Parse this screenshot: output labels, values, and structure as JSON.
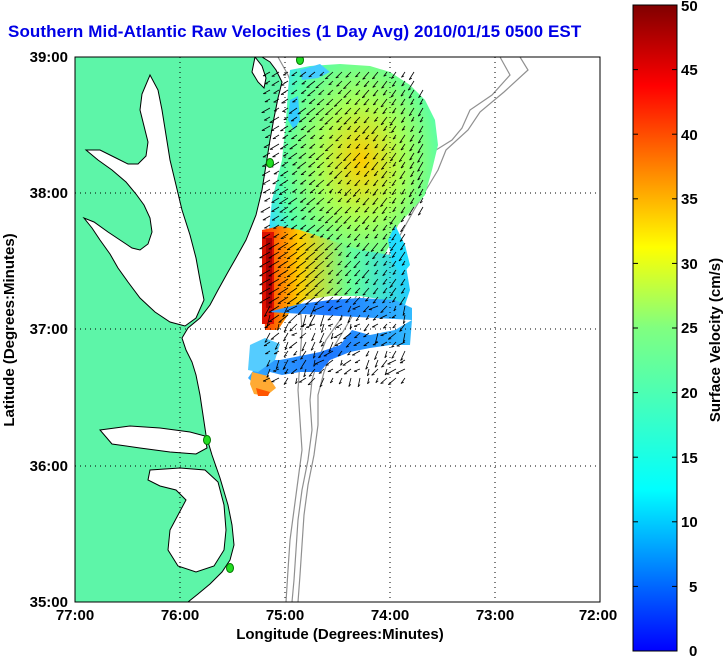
{
  "title": "Southern Mid-Atlantic Raw Velocities (1 Day Avg) 2010/01/15 0500 EST",
  "xlabel": "Longitude (Degrees:Minutes)",
  "ylabel": "Latitude (Degrees:Minutes)",
  "colorbar_label": "Surface Velocity (cm/s)",
  "x_ticks": [
    "77:00",
    "76:00",
    "75:00",
    "74:00",
    "73:00",
    "72:00"
  ],
  "y_ticks": [
    "39:00",
    "38:00",
    "37:00",
    "36:00",
    "35:00"
  ],
  "colorbar_ticks": [
    "50",
    "45",
    "40",
    "35",
    "30",
    "25",
    "20",
    "15",
    "10",
    "5",
    "0"
  ],
  "chart_data": {
    "type": "map",
    "xlim": [
      -77,
      -72
    ],
    "ylim": [
      35,
      39
    ],
    "colorbar_range": [
      0,
      50
    ],
    "colormap": "jet",
    "grid": true,
    "colors": {
      "land": "#5df5a8",
      "bathymetry": "#909090",
      "stations": "#22dd22",
      "arrows": "#000000"
    }
  }
}
